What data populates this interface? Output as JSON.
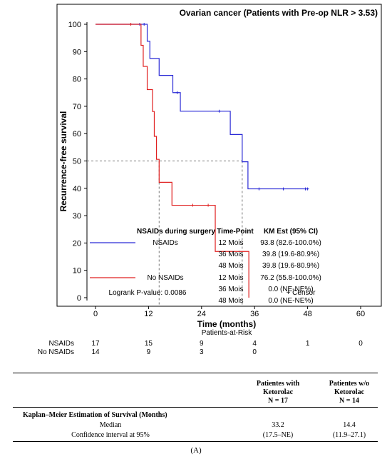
{
  "chart_data": {
    "type": "line",
    "subtype": "kaplan-meier",
    "title": "Ovarian cancer (Patients with Pre-op NLR > 3.53)",
    "xlabel": "Time (months)",
    "ylabel": "Recurrence-free survival",
    "xlim": [
      0,
      60
    ],
    "ylim": [
      0,
      100
    ],
    "xticks": [
      0,
      12,
      24,
      36,
      48,
      60
    ],
    "yticks": [
      0,
      10,
      20,
      30,
      40,
      50,
      60,
      70,
      80,
      90,
      100
    ],
    "grid": false,
    "median_line_y": 50,
    "median_x": [
      14.4,
      33.2
    ],
    "series": [
      {
        "name": "NSAIDs",
        "color": "#2b2bd6",
        "steps": [
          [
            0,
            100
          ],
          [
            11.2,
            100
          ],
          [
            11.7,
            93.8
          ],
          [
            12.3,
            87.5
          ],
          [
            14.4,
            81.3
          ],
          [
            17.5,
            75
          ],
          [
            19.2,
            68.2
          ],
          [
            30.5,
            59.7
          ],
          [
            33.2,
            49.7
          ],
          [
            34.5,
            39.8
          ],
          [
            48,
            39.8
          ]
        ],
        "censors": [
          [
            10,
            100
          ],
          [
            11,
            100
          ],
          [
            18.5,
            75
          ],
          [
            28,
            68.2
          ],
          [
            37,
            39.8
          ],
          [
            42.5,
            39.8
          ],
          [
            47.5,
            39.8
          ],
          [
            48,
            39.8
          ]
        ]
      },
      {
        "name": "No NSAIDs",
        "color": "#e02020",
        "steps": [
          [
            0,
            100
          ],
          [
            9.5,
            100
          ],
          [
            10.3,
            92.3
          ],
          [
            10.8,
            84.6
          ],
          [
            11.7,
            76.1
          ],
          [
            12.9,
            68.1
          ],
          [
            13.3,
            59
          ],
          [
            13.8,
            50.6
          ],
          [
            14.4,
            42.2
          ],
          [
            17.3,
            33.8
          ],
          [
            27.1,
            16.9
          ],
          [
            34.7,
            0
          ]
        ],
        "censors": [
          [
            8,
            100
          ],
          [
            22,
            33.8
          ],
          [
            25.5,
            33.8
          ]
        ]
      }
    ],
    "legend": {
      "header_group": "NSAIDs during surgery",
      "header_time": "Time-Point",
      "header_est": "KM Est (95% CI)",
      "rows": [
        {
          "group": "NSAIDs",
          "time": "12 Mois",
          "est": "93.8 (82.6-100.0%)"
        },
        {
          "group": "",
          "time": "36 Mois",
          "est": "39.8 (19.6-80.9%)"
        },
        {
          "group": "",
          "time": "48 Mois",
          "est": "39.8 (19.6-80.9%)"
        },
        {
          "group": "No NSAIDs",
          "time": "12 Mois",
          "est": "76.2 (55.8-100.0%)"
        },
        {
          "group": "",
          "time": "36 Mois",
          "est": "0.0 (NE-NE%)"
        },
        {
          "group": "",
          "time": "48 Mois",
          "est": "0.0 (NE-NE%)"
        }
      ],
      "logrank": "Logrank P-value: 0.0086",
      "censor_label": "+ Censor"
    },
    "risk_table": {
      "title": "Patients-at-Risk",
      "rows": [
        {
          "label": "NSAIDs",
          "values": [
            "17",
            "15",
            "9",
            "4",
            "1",
            "0"
          ]
        },
        {
          "label": "No NSAIDs",
          "values": [
            "14",
            "9",
            "3",
            "0",
            "",
            ""
          ]
        }
      ]
    }
  },
  "summary_table": {
    "col1_header_line1": "Patientes with",
    "col1_header_line2": "Ketorolac",
    "col1_header_line3": "N = 17",
    "col2_header_line1": "Patientes w/o",
    "col2_header_line2": "Ketorolac",
    "col2_header_line3": "N = 14",
    "section_label": "Kaplan–Meier Estimation of Survival (Months)",
    "rows": [
      {
        "label": "Median",
        "col1": "33.2",
        "col2": "14.4"
      },
      {
        "label": "Confidence interval at 95%",
        "col1": "(17.5–NE)",
        "col2": "(11.9–27.1)"
      }
    ]
  },
  "caption": "(A)"
}
